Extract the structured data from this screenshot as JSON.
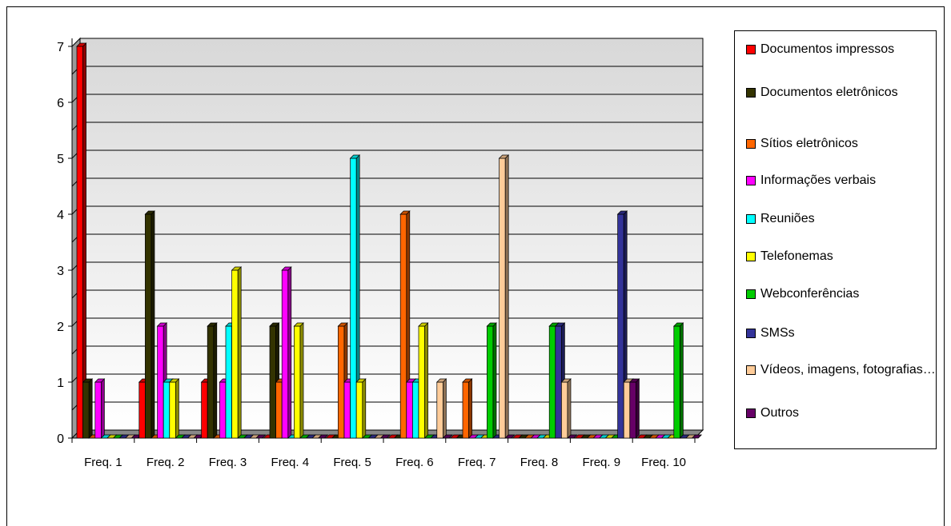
{
  "chart_data": {
    "type": "bar",
    "title": "",
    "xlabel": "",
    "ylabel": "",
    "ylim": [
      0,
      7
    ],
    "yticks": [
      "0",
      "1",
      "2",
      "3",
      "4",
      "5",
      "6",
      "7"
    ],
    "grid": true,
    "legend_position": "right",
    "style": "3d-clustered-column",
    "categories": [
      "Freq. 1",
      "Freq. 2",
      "Freq. 3",
      "Freq. 4",
      "Freq. 5",
      "Freq. 6",
      "Freq. 7",
      "Freq. 8",
      "Freq. 9",
      "Freq. 10"
    ],
    "series": [
      {
        "name": "Documentos impressos",
        "color": "#FF0000",
        "values": [
          7,
          1,
          1,
          0,
          0,
          0,
          0,
          0,
          0,
          0
        ]
      },
      {
        "name": "Documentos eletrônicos",
        "color": "#333300",
        "values": [
          1,
          4,
          2,
          2,
          0,
          0,
          0,
          0,
          0,
          0
        ]
      },
      {
        "name": "Sítios eletrônicos",
        "color": "#FF6600",
        "values": [
          0,
          0,
          0,
          1,
          2,
          4,
          1,
          0,
          0,
          0
        ]
      },
      {
        "name": "Informações verbais",
        "color": "#FF00FF",
        "values": [
          1,
          2,
          1,
          3,
          1,
          1,
          0,
          0,
          0,
          0
        ]
      },
      {
        "name": "Reuniões",
        "color": "#00FFFF",
        "values": [
          0,
          1,
          2,
          0,
          5,
          1,
          0,
          0,
          0,
          0
        ]
      },
      {
        "name": "Telefonemas",
        "color": "#FFFF00",
        "values": [
          0,
          1,
          3,
          2,
          1,
          2,
          0,
          0,
          0,
          0
        ]
      },
      {
        "name": "Webconferências",
        "color": "#00CC00",
        "values": [
          0,
          0,
          0,
          0,
          0,
          0,
          2,
          2,
          0,
          2
        ]
      },
      {
        "name": "SMSs",
        "color": "#333399",
        "values": [
          0,
          0,
          0,
          0,
          0,
          0,
          0,
          2,
          4,
          0
        ]
      },
      {
        "name": "Vídeos, imagens, fotografias…",
        "color": "#FFCC99",
        "values": [
          0,
          0,
          0,
          0,
          0,
          1,
          5,
          1,
          1,
          0
        ]
      },
      {
        "name": "Outros",
        "color": "#660066",
        "values": [
          0,
          0,
          0,
          0,
          0,
          0,
          0,
          0,
          1,
          0
        ]
      }
    ]
  }
}
